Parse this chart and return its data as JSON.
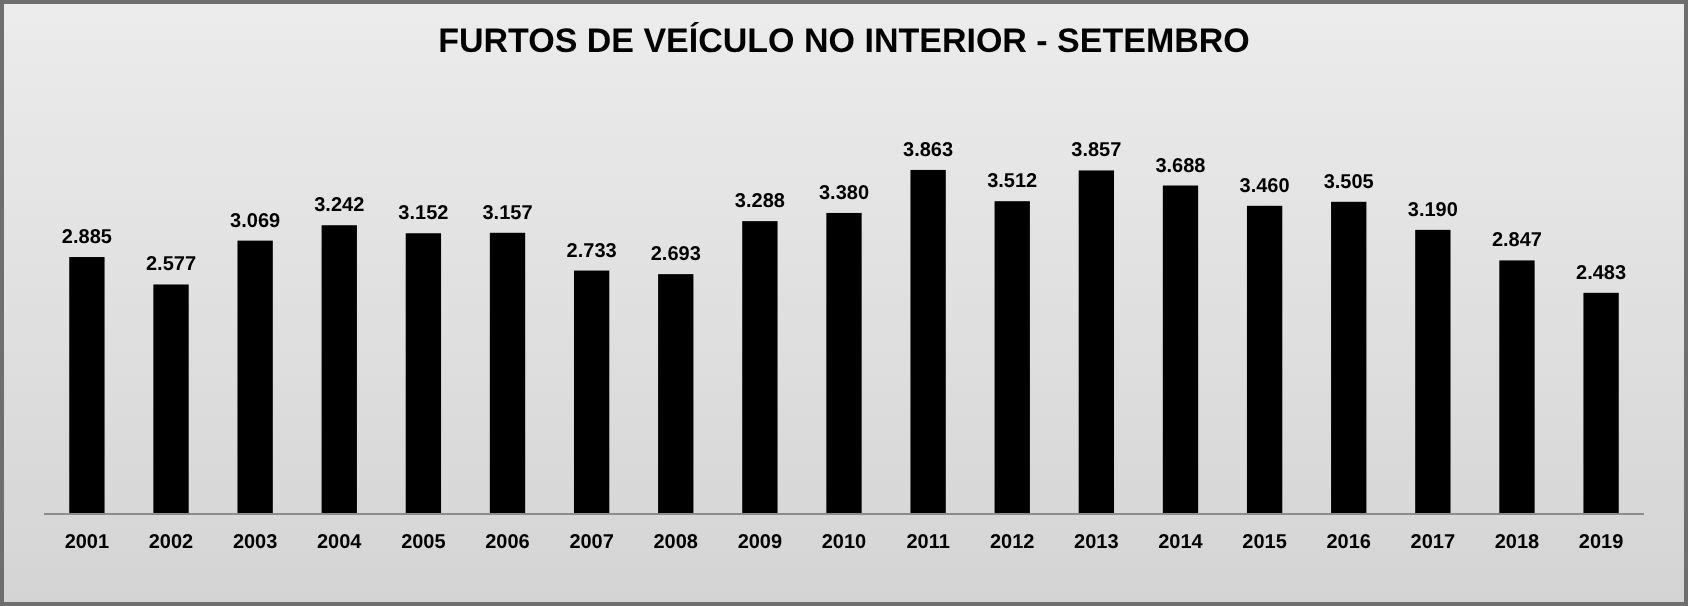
{
  "chart_data": {
    "type": "bar",
    "title": "FURTOS DE VEÍCULO NO INTERIOR - SETEMBRO",
    "categories": [
      "2001",
      "2002",
      "2003",
      "2004",
      "2005",
      "2006",
      "2007",
      "2008",
      "2009",
      "2010",
      "2011",
      "2012",
      "2013",
      "2014",
      "2015",
      "2016",
      "2017",
      "2018",
      "2019"
    ],
    "values": [
      2885,
      2577,
      3069,
      3242,
      3152,
      3157,
      2733,
      2693,
      3288,
      3380,
      3863,
      3512,
      3857,
      3688,
      3460,
      3505,
      3190,
      2847,
      2483
    ],
    "value_labels": [
      "2.885",
      "2.577",
      "3.069",
      "3.242",
      "3.152",
      "3.157",
      "2.733",
      "2.693",
      "3.288",
      "3.380",
      "3.863",
      "3.512",
      "3.857",
      "3.688",
      "3.460",
      "3.505",
      "3.190",
      "2.847",
      "2.483"
    ],
    "color": "#000000",
    "tick_labels": "x"
  }
}
